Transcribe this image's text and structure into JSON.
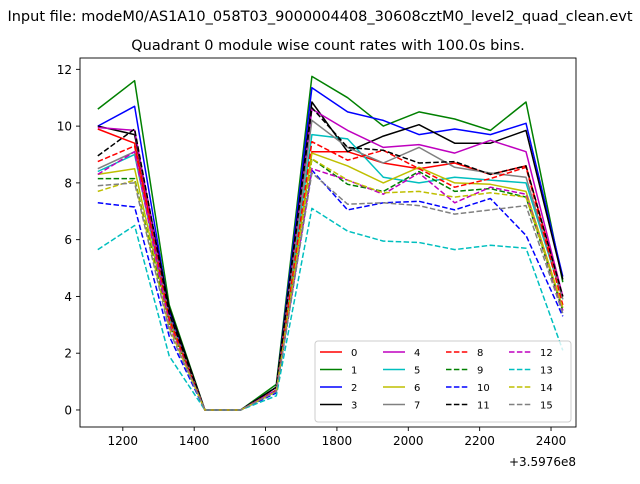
{
  "figure": {
    "suptitle": "Input file: modeM0/AS1A10_058T03_9000004408_30608cztM0_level2_quad_clean.evt"
  },
  "chart_data": {
    "type": "line",
    "title": "Quadrant 0 module wise count rates with 100.0s bins.",
    "xlabel": "",
    "ylabel": "",
    "x_offset_label": "+3.5976e8",
    "xlim": [
      1080,
      2470
    ],
    "ylim": [
      -0.6,
      12.4
    ],
    "xticks": [
      1200,
      1400,
      1600,
      1800,
      2000,
      2200,
      2400
    ],
    "yticks": [
      0,
      2,
      4,
      6,
      8,
      10,
      12
    ],
    "grid": false,
    "legend_position": "lower right",
    "legend_columns": 4,
    "x": [
      1130,
      1233,
      1330,
      1430,
      1530,
      1630,
      1730,
      1830,
      1930,
      2030,
      2130,
      2230,
      2330,
      2433
    ],
    "series": [
      {
        "name": "0",
        "color": "#ff0000",
        "dash": "solid",
        "values": [
          9.9,
          9.4,
          3.4,
          0,
          0,
          0.7,
          9.1,
          9.1,
          8.7,
          8.5,
          8.7,
          8.3,
          8.6,
          4.0
        ]
      },
      {
        "name": "1",
        "color": "#008000",
        "dash": "solid",
        "values": [
          10.6,
          11.6,
          3.7,
          0,
          0,
          0.9,
          11.75,
          11.0,
          10.0,
          10.5,
          10.25,
          9.85,
          10.85,
          4.5
        ]
      },
      {
        "name": "2",
        "color": "#0000ff",
        "dash": "solid",
        "values": [
          10.0,
          10.7,
          3.5,
          0,
          0,
          0.8,
          11.35,
          10.5,
          10.2,
          9.7,
          9.9,
          9.7,
          10.1,
          4.7
        ]
      },
      {
        "name": "3",
        "color": "#000000",
        "dash": "solid",
        "values": [
          10.0,
          9.7,
          3.6,
          0,
          0,
          0.8,
          10.85,
          9.1,
          9.65,
          10.05,
          9.4,
          9.4,
          9.85,
          4.6
        ]
      },
      {
        "name": "4",
        "color": "#bf00bf",
        "dash": "solid",
        "values": [
          9.95,
          9.85,
          3.3,
          0,
          0,
          0.7,
          10.6,
          9.85,
          9.25,
          9.35,
          9.05,
          9.5,
          9.1,
          4.0
        ]
      },
      {
        "name": "5",
        "color": "#00bfbf",
        "dash": "solid",
        "values": [
          8.4,
          9.0,
          3.2,
          0,
          0,
          0.7,
          9.7,
          9.55,
          8.2,
          8.0,
          8.2,
          8.1,
          8.0,
          3.9
        ]
      },
      {
        "name": "6",
        "color": "#bfbf00",
        "dash": "solid",
        "values": [
          8.3,
          8.5,
          3.1,
          0,
          0,
          0.7,
          9.05,
          8.6,
          8.0,
          8.55,
          8.0,
          7.95,
          7.7,
          3.6
        ]
      },
      {
        "name": "7",
        "color": "#808080",
        "dash": "solid",
        "values": [
          8.5,
          9.1,
          3.3,
          0,
          0,
          0.7,
          10.2,
          9.25,
          8.7,
          9.25,
          8.55,
          8.35,
          8.2,
          3.9
        ]
      },
      {
        "name": "8",
        "color": "#ff0000",
        "dash": "dashed",
        "values": [
          8.75,
          9.3,
          3.2,
          0,
          0,
          0.7,
          9.45,
          8.8,
          9.15,
          8.5,
          7.85,
          8.15,
          8.55,
          3.7
        ]
      },
      {
        "name": "9",
        "color": "#008000",
        "dash": "dashed",
        "values": [
          8.15,
          8.15,
          3.0,
          0,
          0,
          0.65,
          8.85,
          7.95,
          7.7,
          8.4,
          7.7,
          7.8,
          7.5,
          3.5
        ]
      },
      {
        "name": "10",
        "color": "#0000ff",
        "dash": "dashed",
        "values": [
          7.3,
          7.15,
          2.6,
          0,
          0,
          0.6,
          8.45,
          7.05,
          7.3,
          7.35,
          7.05,
          7.45,
          6.15,
          3.3
        ]
      },
      {
        "name": "11",
        "color": "#000000",
        "dash": "dashed",
        "values": [
          8.95,
          9.9,
          3.4,
          0,
          0,
          0.8,
          10.65,
          9.25,
          9.15,
          8.7,
          8.75,
          8.3,
          8.6,
          4.0
        ]
      },
      {
        "name": "12",
        "color": "#bf00bf",
        "dash": "dashed",
        "values": [
          8.3,
          9.1,
          3.0,
          0,
          0,
          0.7,
          8.5,
          8.1,
          7.6,
          8.35,
          7.3,
          7.85,
          7.6,
          3.5
        ]
      },
      {
        "name": "13",
        "color": "#00bfbf",
        "dash": "dashed",
        "values": [
          5.65,
          6.5,
          1.9,
          0,
          0,
          0.5,
          7.1,
          6.3,
          5.95,
          5.9,
          5.65,
          5.8,
          5.7,
          2.1
        ]
      },
      {
        "name": "14",
        "color": "#bfbf00",
        "dash": "dashed",
        "values": [
          7.7,
          8.1,
          2.9,
          0,
          0,
          0.65,
          8.85,
          8.1,
          7.65,
          7.7,
          7.5,
          7.65,
          7.5,
          3.6
        ]
      },
      {
        "name": "15",
        "color": "#808080",
        "dash": "dashed",
        "values": [
          7.9,
          8.0,
          2.8,
          0,
          0,
          0.65,
          8.35,
          7.25,
          7.3,
          7.2,
          6.9,
          7.05,
          7.2,
          3.4
        ]
      }
    ]
  }
}
